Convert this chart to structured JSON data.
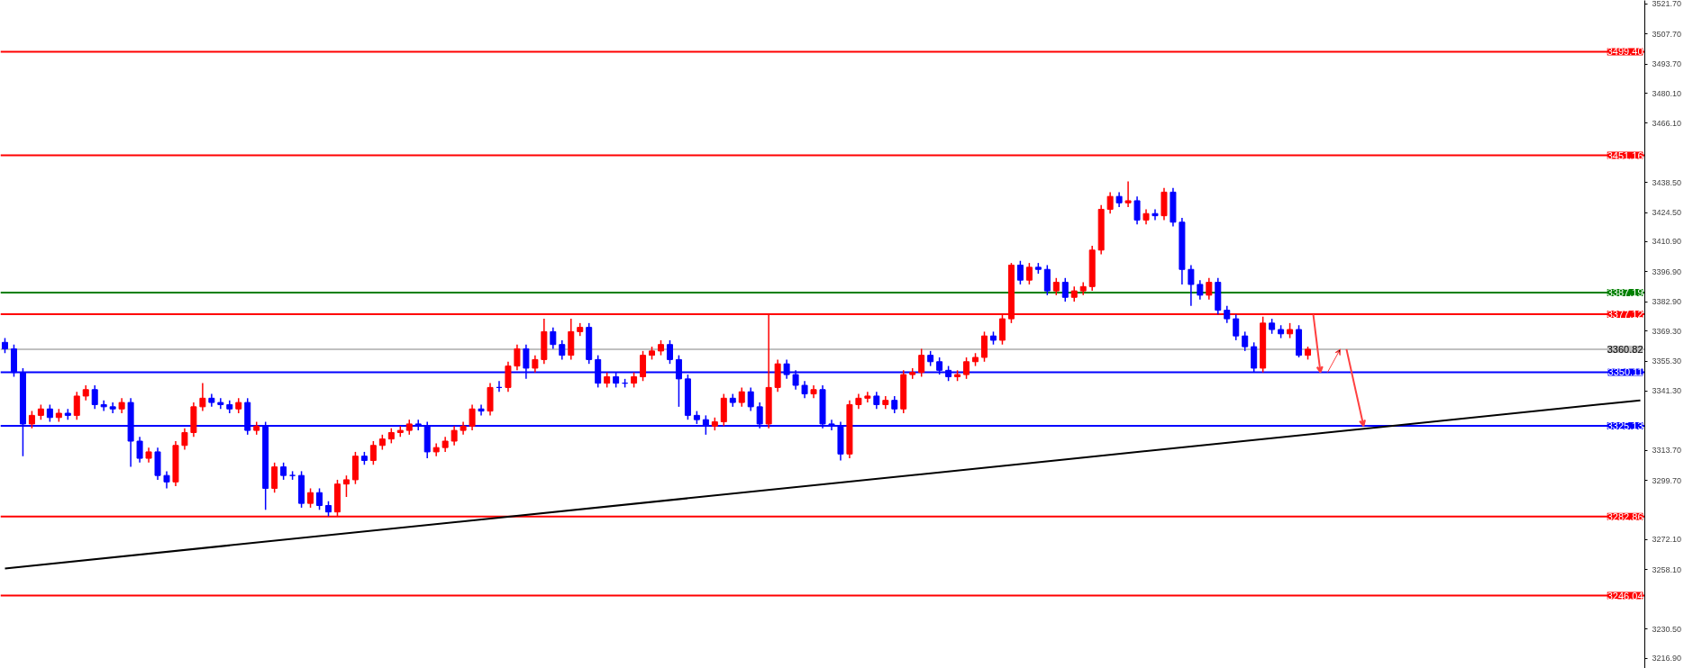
{
  "chart_data": {
    "type": "candlestick",
    "categories": [
      null,
      null,
      null,
      null,
      null,
      null,
      null,
      null,
      null,
      null,
      null,
      null,
      null,
      null,
      null,
      null,
      null,
      null,
      null,
      null,
      null,
      null,
      null,
      null,
      null,
      null,
      null,
      null,
      null,
      null,
      null,
      null,
      null,
      null,
      null,
      null,
      null,
      null,
      null,
      null,
      null,
      null,
      null,
      null,
      null,
      null,
      null,
      null,
      null,
      null,
      null,
      null,
      null,
      null,
      null,
      null,
      null,
      null,
      null,
      null,
      null,
      null,
      null,
      null,
      null,
      null,
      null,
      null,
      null,
      null,
      null,
      null,
      null,
      null,
      null,
      null,
      null,
      null,
      null,
      null,
      null,
      null,
      null,
      null,
      null,
      null,
      null,
      null,
      null,
      null,
      null,
      null,
      null,
      null,
      null,
      null,
      null,
      null,
      null,
      null,
      null,
      null,
      null,
      null,
      null,
      null,
      null,
      null,
      null,
      null,
      null,
      null,
      null,
      null,
      null,
      null,
      null,
      null,
      null,
      null,
      null,
      null,
      null,
      null,
      null,
      null,
      null,
      null,
      null,
      null,
      null,
      null,
      null,
      null,
      null,
      null,
      null,
      null,
      null,
      null,
      null,
      null,
      null,
      null,
      null,
      null,
      null,
      null,
      null,
      null,
      null,
      null,
      null,
      null,
      null,
      null,
      null,
      null,
      null,
      null,
      null,
      null,
      null,
      null,
      null,
      null,
      null,
      null,
      null,
      null,
      null,
      null,
      null,
      null,
      null,
      null,
      null,
      null,
      null,
      null,
      null,
      null,
      null
    ],
    "ohlc": [
      [
        3364,
        3366,
        3359,
        3361
      ],
      [
        3361,
        3363,
        3348,
        3350
      ],
      [
        3350,
        3352,
        3311,
        3326
      ],
      [
        3326,
        3332,
        3324,
        3330
      ],
      [
        3330,
        3335,
        3328,
        3333
      ],
      [
        3333,
        3335,
        3327,
        3329
      ],
      [
        3329,
        3333,
        3327,
        3331
      ],
      [
        3331,
        3333,
        3328,
        3330
      ],
      [
        3330,
        3341,
        3328,
        3339
      ],
      [
        3339,
        3344,
        3337,
        3342
      ],
      [
        3342,
        3344,
        3333,
        3335
      ],
      [
        3335,
        3337,
        3332,
        3334
      ],
      [
        3334,
        3336,
        3331,
        3333
      ],
      [
        3333,
        3338,
        3331,
        3336
      ],
      [
        3336,
        3338,
        3306,
        3318
      ],
      [
        3318,
        3320,
        3308,
        3310
      ],
      [
        3310,
        3315,
        3308,
        3313
      ],
      [
        3313,
        3315,
        3300,
        3302
      ],
      [
        3302,
        3304,
        3296,
        3299
      ],
      [
        3299,
        3318,
        3297,
        3316
      ],
      [
        3316,
        3324,
        3314,
        3322
      ],
      [
        3322,
        3336,
        3320,
        3334
      ],
      [
        3334,
        3345,
        3332,
        3338
      ],
      [
        3338,
        3340,
        3334,
        3336
      ],
      [
        3336,
        3338,
        3333,
        3335
      ],
      [
        3335,
        3337,
        3331,
        3333
      ],
      [
        3333,
        3338,
        3331,
        3336
      ],
      [
        3336,
        3338,
        3321,
        3323
      ],
      [
        3323,
        3327,
        3321,
        3325
      ],
      [
        3325,
        3327,
        3286,
        3296
      ],
      [
        3296,
        3308,
        3294,
        3306
      ],
      [
        3306,
        3308,
        3300,
        3302
      ],
      [
        3302,
        3304,
        3300,
        3302
      ],
      [
        3302,
        3304,
        3287,
        3289
      ],
      [
        3289,
        3296,
        3287,
        3294
      ],
      [
        3294,
        3296,
        3286,
        3288
      ],
      [
        3288,
        3290,
        3283,
        3285
      ],
      [
        3285,
        3300,
        3283,
        3298
      ],
      [
        3298,
        3302,
        3292,
        3300
      ],
      [
        3300,
        3313,
        3298,
        3311
      ],
      [
        3311,
        3313,
        3307,
        3309
      ],
      [
        3309,
        3318,
        3307,
        3316
      ],
      [
        3316,
        3321,
        3314,
        3319
      ],
      [
        3319,
        3324,
        3317,
        3322
      ],
      [
        3322,
        3325,
        3320,
        3323
      ],
      [
        3323,
        3328,
        3321,
        3326
      ],
      [
        3326,
        3328,
        3323,
        3325
      ],
      [
        3325,
        3327,
        3310,
        3313
      ],
      [
        3313,
        3317,
        3311,
        3315
      ],
      [
        3315,
        3320,
        3313,
        3318
      ],
      [
        3318,
        3325,
        3316,
        3323
      ],
      [
        3323,
        3327,
        3321,
        3325
      ],
      [
        3325,
        3335,
        3323,
        3333
      ],
      [
        3333,
        3335,
        3330,
        3332
      ],
      [
        3332,
        3345,
        3330,
        3343
      ],
      [
        3343,
        3346,
        3341,
        3343
      ],
      [
        3343,
        3355,
        3341,
        3353
      ],
      [
        3353,
        3363,
        3351,
        3361
      ],
      [
        3361,
        3363,
        3347,
        3352
      ],
      [
        3352,
        3358,
        3350,
        3356
      ],
      [
        3356,
        3375,
        3354,
        3369
      ],
      [
        3369,
        3371,
        3361,
        3363
      ],
      [
        3363,
        3365,
        3356,
        3358
      ],
      [
        3358,
        3375,
        3356,
        3369
      ],
      [
        3369,
        3373,
        3367,
        3371
      ],
      [
        3371,
        3373,
        3354,
        3356
      ],
      [
        3356,
        3358,
        3343,
        3345
      ],
      [
        3345,
        3350,
        3343,
        3348
      ],
      [
        3348,
        3350,
        3343,
        3345
      ],
      [
        3345,
        3347,
        3343,
        3345
      ],
      [
        3345,
        3350,
        3343,
        3348
      ],
      [
        3348,
        3360,
        3346,
        3358
      ],
      [
        3358,
        3362,
        3356,
        3360
      ],
      [
        3360,
        3365,
        3358,
        3363
      ],
      [
        3363,
        3365,
        3354,
        3356
      ],
      [
        3356,
        3358,
        3334,
        3347
      ],
      [
        3347,
        3349,
        3328,
        3330
      ],
      [
        3330,
        3332,
        3326,
        3328
      ],
      [
        3328,
        3330,
        3321,
        3325
      ],
      [
        3325,
        3329,
        3323,
        3327
      ],
      [
        3327,
        3340,
        3325,
        3338
      ],
      [
        3338,
        3340,
        3334,
        3336
      ],
      [
        3336,
        3343,
        3334,
        3341
      ],
      [
        3341,
        3343,
        3332,
        3334
      ],
      [
        3334,
        3336,
        3324,
        3326
      ],
      [
        3326,
        3377,
        3324,
        3343
      ],
      [
        3343,
        3356,
        3341,
        3354
      ],
      [
        3354,
        3356,
        3347,
        3349
      ],
      [
        3349,
        3351,
        3342,
        3344
      ],
      [
        3344,
        3346,
        3338,
        3340
      ],
      [
        3340,
        3344,
        3338,
        3342
      ],
      [
        3342,
        3344,
        3324,
        3326
      ],
      [
        3326,
        3328,
        3323,
        3325
      ],
      [
        3325,
        3327,
        3309,
        3312
      ],
      [
        3312,
        3337,
        3310,
        3335
      ],
      [
        3335,
        3340,
        3333,
        3338
      ],
      [
        3338,
        3341,
        3336,
        3339
      ],
      [
        3339,
        3341,
        3333,
        3335
      ],
      [
        3335,
        3339,
        3333,
        3337
      ],
      [
        3337,
        3339,
        3331,
        3333
      ],
      [
        3333,
        3351,
        3331,
        3349
      ],
      [
        3349,
        3352,
        3347,
        3350
      ],
      [
        3350,
        3361,
        3348,
        3358
      ],
      [
        3358,
        3360,
        3353,
        3355
      ],
      [
        3355,
        3357,
        3349,
        3351
      ],
      [
        3351,
        3353,
        3346,
        3348
      ],
      [
        3348,
        3351,
        3346,
        3349
      ],
      [
        3349,
        3357,
        3347,
        3355
      ],
      [
        3355,
        3359,
        3353,
        3357
      ],
      [
        3357,
        3369,
        3355,
        3367
      ],
      [
        3367,
        3369,
        3363,
        3365
      ],
      [
        3365,
        3377,
        3363,
        3375
      ],
      [
        3375,
        3401,
        3373,
        3400
      ],
      [
        3400,
        3402,
        3391,
        3393
      ],
      [
        3393,
        3401,
        3391,
        3399
      ],
      [
        3399,
        3401,
        3396,
        3398
      ],
      [
        3398,
        3400,
        3386,
        3388
      ],
      [
        3388,
        3394,
        3386,
        3392
      ],
      [
        3392,
        3394,
        3383,
        3385
      ],
      [
        3385,
        3390,
        3383,
        3388
      ],
      [
        3388,
        3392,
        3386,
        3390
      ],
      [
        3390,
        3409,
        3388,
        3407
      ],
      [
        3407,
        3428,
        3405,
        3426
      ],
      [
        3426,
        3434,
        3424,
        3432
      ],
      [
        3432,
        3434,
        3427,
        3429
      ],
      [
        3429,
        3439,
        3427,
        3430
      ],
      [
        3430,
        3432,
        3419,
        3421
      ],
      [
        3421,
        3426,
        3419,
        3424
      ],
      [
        3424,
        3426,
        3421,
        3423
      ],
      [
        3423,
        3436,
        3421,
        3434
      ],
      [
        3434,
        3436,
        3418,
        3420
      ],
      [
        3420,
        3422,
        3391,
        3398
      ],
      [
        3398,
        3400,
        3381,
        3391
      ],
      [
        3391,
        3393,
        3384,
        3386
      ],
      [
        3386,
        3394,
        3384,
        3392
      ],
      [
        3392,
        3394,
        3377,
        3379
      ],
      [
        3379,
        3381,
        3373,
        3375
      ],
      [
        3375,
        3377,
        3365,
        3367
      ],
      [
        3367,
        3369,
        3360,
        3362
      ],
      [
        3362,
        3364,
        3350,
        3352
      ],
      [
        3352,
        3376,
        3350,
        3373
      ],
      [
        3373,
        3375,
        3368,
        3370
      ],
      [
        3370,
        3372,
        3366,
        3368
      ],
      [
        3368,
        3373,
        3366,
        3370
      ],
      [
        3370,
        3372,
        3357,
        3358
      ],
      [
        3358,
        3362,
        3356,
        3360.8
      ],
      null,
      null,
      null,
      null,
      null,
      null,
      null,
      null,
      null,
      null,
      null,
      null,
      null,
      null,
      null,
      null,
      null,
      null,
      null,
      null,
      null,
      null,
      null,
      null,
      null,
      null,
      null,
      null,
      null,
      null,
      null,
      null,
      null,
      null,
      null,
      null,
      null
    ],
    "colors": [
      "#0000ff",
      "#0000ff",
      "#0000ff",
      "#ff0000",
      "#ff0000",
      "#0000ff",
      "#ff0000",
      "#0000ff",
      "#ff0000",
      "#ff0000",
      "#0000ff",
      "#0000ff",
      "#0000ff",
      "#ff0000",
      "#0000ff",
      "#0000ff",
      "#ff0000",
      "#0000ff",
      "#0000ff",
      "#ff0000",
      "#ff0000",
      "#ff0000",
      "#ff0000",
      "#0000ff",
      "#0000ff",
      "#0000ff",
      "#ff0000",
      "#0000ff",
      "#ff0000",
      "#0000ff",
      "#ff0000",
      "#0000ff",
      "#0000ff",
      "#0000ff",
      "#ff0000",
      "#0000ff",
      "#0000ff",
      "#ff0000",
      "#ff0000",
      "#ff0000",
      "#0000ff",
      "#ff0000",
      "#ff0000",
      "#ff0000",
      "#ff0000",
      "#ff0000",
      "#0000ff",
      "#0000ff",
      "#ff0000",
      "#ff0000",
      "#ff0000",
      "#ff0000",
      "#ff0000",
      "#0000ff",
      "#ff0000",
      "#0000ff",
      "#ff0000",
      "#ff0000",
      "#0000ff",
      "#ff0000",
      "#ff0000",
      "#0000ff",
      "#0000ff",
      "#ff0000",
      "#ff0000",
      "#0000ff",
      "#0000ff",
      "#ff0000",
      "#0000ff",
      "#0000ff",
      "#ff0000",
      "#ff0000",
      "#ff0000",
      "#ff0000",
      "#0000ff",
      "#0000ff",
      "#0000ff",
      "#0000ff",
      "#0000ff",
      "#ff0000",
      "#ff0000",
      "#0000ff",
      "#ff0000",
      "#0000ff",
      "#0000ff",
      "#ff0000",
      "#ff0000",
      "#0000ff",
      "#0000ff",
      "#0000ff",
      "#ff0000",
      "#0000ff",
      "#0000ff",
      "#0000ff",
      "#ff0000",
      "#ff0000",
      "#ff0000",
      "#0000ff",
      "#ff0000",
      "#0000ff",
      "#ff0000",
      "#ff0000",
      "#ff0000",
      "#0000ff",
      "#0000ff",
      "#0000ff",
      "#ff0000",
      "#ff0000",
      "#ff0000",
      "#ff0000",
      "#0000ff",
      "#ff0000",
      "#ff0000",
      "#0000ff",
      "#ff0000",
      "#0000ff",
      "#0000ff",
      "#ff0000",
      "#0000ff",
      "#ff0000",
      "#ff0000",
      "#ff0000",
      "#ff0000",
      "#ff0000",
      "#0000ff",
      "#ff0000",
      "#0000ff",
      "#ff0000",
      "#0000ff",
      "#ff0000",
      "#0000ff",
      "#0000ff",
      "#0000ff",
      "#0000ff",
      "#ff0000",
      "#0000ff",
      "#0000ff",
      "#0000ff",
      "#0000ff",
      "#0000ff",
      "#ff0000",
      "#0000ff",
      "#0000ff",
      "#ff0000",
      "#0000ff",
      "#ff0000",
      null,
      null,
      null,
      null,
      null,
      null,
      null,
      null,
      null,
      null,
      null,
      null,
      null,
      null,
      null,
      null,
      null,
      null,
      null,
      null,
      null,
      null,
      null,
      null,
      null,
      null,
      null,
      null,
      null,
      null,
      null,
      null,
      null,
      null,
      null,
      null,
      null
    ],
    "series": [
      {
        "type": "line",
        "color": "#000000",
        "values": [
          3258.7,
          null,
          null,
          null,
          null,
          null,
          null,
          null,
          null,
          null,
          null,
          null,
          null,
          null,
          null,
          null,
          null,
          null,
          null,
          null,
          null,
          null,
          null,
          null,
          null,
          null,
          null,
          null,
          null,
          null,
          null,
          null,
          null,
          null,
          null,
          null,
          null,
          null,
          null,
          null,
          null,
          null,
          null,
          null,
          null,
          null,
          null,
          null,
          null,
          null,
          null,
          null,
          null,
          null,
          null,
          null,
          null,
          null,
          null,
          null,
          null,
          null,
          null,
          null,
          null,
          null,
          null,
          null,
          null,
          null,
          null,
          null,
          null,
          null,
          null,
          null,
          null,
          null,
          null,
          null,
          null,
          null,
          null,
          null,
          null,
          null,
          null,
          null,
          null,
          null,
          null,
          null,
          null,
          null,
          null,
          null,
          null,
          null,
          null,
          null,
          null,
          null,
          null,
          null,
          null,
          null,
          null,
          null,
          null,
          null,
          null,
          null,
          null,
          null,
          null,
          null,
          null,
          null,
          null,
          null,
          null,
          null,
          null,
          null,
          null,
          null,
          null,
          null,
          null,
          null,
          null,
          null,
          null,
          null,
          null,
          null,
          null,
          null,
          null,
          null,
          null,
          null,
          null,
          null,
          null,
          null,
          null,
          null,
          null,
          null,
          null,
          null,
          null,
          null,
          null,
          null,
          null,
          null,
          null,
          null,
          null,
          null,
          null,
          null,
          null,
          null,
          null,
          null,
          null,
          null,
          null,
          null,
          null,
          null,
          null,
          null,
          null,
          null,
          null,
          null,
          null,
          null,
          3337.0
        ]
      }
    ],
    "ylim": [
      3212.1,
      3523.3
    ],
    "yticks": [
      {
        "value": 3521.7,
        "label": "3521.70"
      },
      {
        "value": 3507.7,
        "label": "3507.70"
      },
      {
        "value": 3493.7,
        "label": "3493.70"
      },
      {
        "value": 3480.1,
        "label": "3480.10"
      },
      {
        "value": 3466.1,
        "label": "3466.10"
      },
      {
        "value": 3438.5,
        "label": "3438.50"
      },
      {
        "value": 3424.5,
        "label": "3424.50"
      },
      {
        "value": 3410.9,
        "label": "3410.90"
      },
      {
        "value": 3396.9,
        "label": "3396.90"
      },
      {
        "value": 3382.9,
        "label": "3382.90"
      },
      {
        "value": 3369.3,
        "label": "3369.30"
      },
      {
        "value": 3355.3,
        "label": "3355.30"
      },
      {
        "value": 3341.3,
        "label": "3341.30"
      },
      {
        "value": 3313.7,
        "label": "3313.70"
      },
      {
        "value": 3299.7,
        "label": "3299.70"
      },
      {
        "value": 3272.1,
        "label": "3272.10"
      },
      {
        "value": 3258.1,
        "label": "3258.10"
      },
      {
        "value": 3230.5,
        "label": "3230.50"
      },
      {
        "value": 3216.9,
        "label": "3216.90"
      }
    ],
    "ref_lines": [
      {
        "axis": "y",
        "value": 3499.4,
        "label": "3499.40",
        "color": "#ff0000"
      },
      {
        "axis": "y",
        "value": 3451.16,
        "label": "3451.16",
        "color": "#ff0000"
      },
      {
        "axis": "y",
        "value": 3387.19,
        "label": "3387.19",
        "color": "#008000"
      },
      {
        "axis": "y",
        "value": 3377.12,
        "label": "3377.12",
        "color": "#ff0000"
      },
      {
        "axis": "y",
        "value": 3360.82,
        "label": "3360.82",
        "color": "#c0c0c0"
      },
      {
        "axis": "y",
        "value": 3350.11,
        "label": "3350.11",
        "color": "#0000ff"
      },
      {
        "axis": "y",
        "value": 3325.13,
        "label": "3325.13",
        "color": "#0000ff"
      },
      {
        "axis": "y",
        "value": 3282.86,
        "label": "3282.86",
        "color": "#ff0000"
      },
      {
        "axis": "y",
        "value": 3246.04,
        "label": "3246.04",
        "color": "#ff0000"
      }
    ],
    "tick_labels": "y",
    "grid": false
  }
}
